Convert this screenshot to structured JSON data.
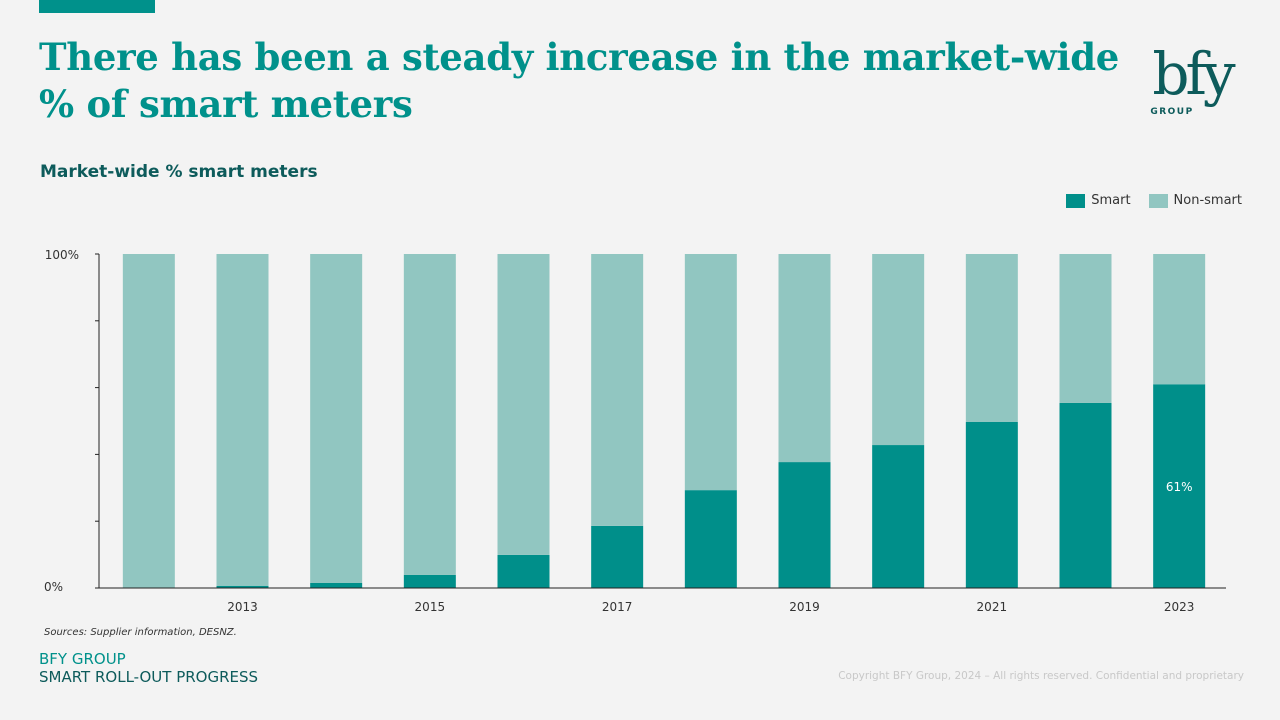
{
  "header": {
    "title": "There has been a steady increase in the market-wide % of smart meters",
    "logo_text": "bfy",
    "logo_subtext": "GROUP"
  },
  "colors": {
    "accent": "#00918b",
    "dark_teal": "#0d5b5b",
    "smart": "#008f8a",
    "non_smart": "#91c6c1"
  },
  "chart_data": {
    "type": "bar",
    "stacked": true,
    "title": "Market-wide % smart meters",
    "categories": [
      "2012",
      "2013",
      "2014",
      "2015",
      "2016",
      "2017",
      "2018",
      "2019",
      "2020",
      "2021",
      "2022",
      "2023"
    ],
    "x_tick_labels": [
      "",
      "2013",
      "",
      "2015",
      "",
      "2017",
      "",
      "2019",
      "",
      "2021",
      "",
      "2023"
    ],
    "series": [
      {
        "name": "Smart",
        "color": "#008f8a",
        "values": [
          0,
          0.6,
          1.5,
          3.9,
          9.9,
          18.6,
          29.3,
          37.7,
          42.8,
          49.7,
          55.4,
          61
        ]
      },
      {
        "name": "Non-smart",
        "color": "#91c6c1",
        "values": [
          100,
          99.4,
          98.5,
          96.1,
          90.1,
          81.4,
          70.7,
          62.3,
          57.2,
          50.3,
          44.6,
          39
        ]
      }
    ],
    "data_labels": [
      {
        "category": "2023",
        "series": "Smart",
        "text": "61%"
      }
    ],
    "y_tick_labels": [
      "0%",
      "100%"
    ],
    "y_ticks": [
      0,
      20,
      40,
      60,
      80,
      100
    ],
    "ylim": [
      0,
      100
    ],
    "xlabel": "",
    "ylabel": "",
    "grid": false,
    "legend": {
      "position": "top-right",
      "entries": [
        "Smart",
        "Non-smart"
      ]
    }
  },
  "footer": {
    "sources": "Sources: Supplier information, DESNZ.",
    "brand_line1": "BFY GROUP",
    "brand_line2": "SMART ROLL-OUT PROGRESS",
    "copyright": "Copyright BFY Group, 2024 – All rights reserved. Confidential and proprietary"
  }
}
